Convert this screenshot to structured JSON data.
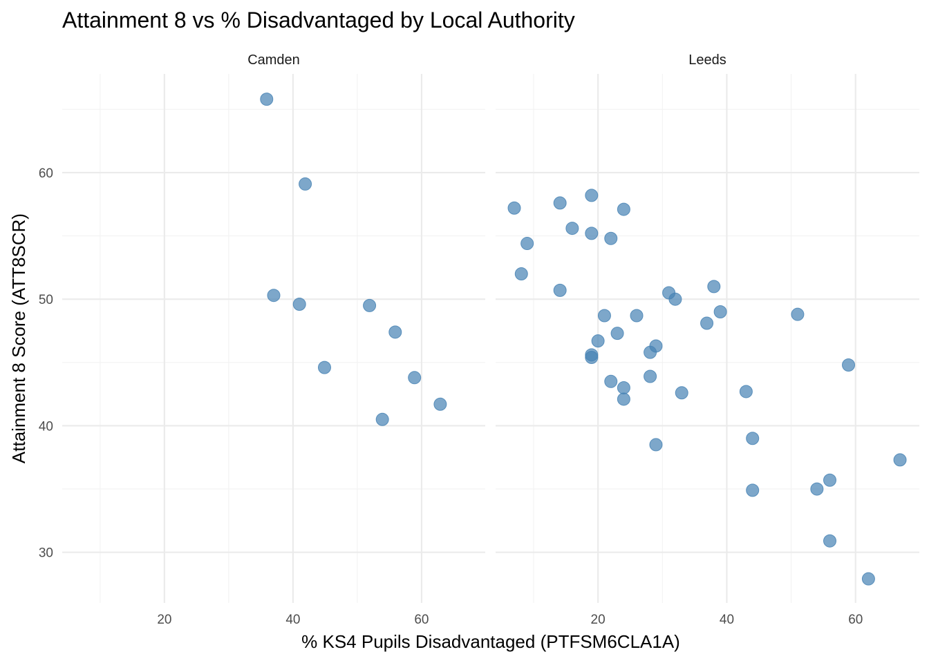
{
  "chart_data": {
    "type": "scatter",
    "title": "Attainment 8 vs % Disadvantaged by Local Authority",
    "xlabel": "% KS4 Pupils Disadvantaged (PTFSM6CLA1A)",
    "ylabel": "Attainment 8 Score (ATT8SCR)",
    "xlim": [
      4.1,
      69.9
    ],
    "ylim": [
      26.0,
      67.8
    ],
    "x_ticks": [
      20,
      40,
      60
    ],
    "y_ticks": [
      30,
      40,
      50,
      60
    ],
    "x_tick_labels": [
      "20",
      "40",
      "60"
    ],
    "y_tick_labels": [
      "30",
      "40",
      "50",
      "60"
    ],
    "grid": true,
    "legend": "none",
    "point_color": "#4682B4",
    "facets": [
      {
        "name": "Camden",
        "points": [
          {
            "x": 35.9,
            "y": 65.8
          },
          {
            "x": 41.9,
            "y": 59.1
          },
          {
            "x": 37.0,
            "y": 50.3
          },
          {
            "x": 41.0,
            "y": 49.6
          },
          {
            "x": 51.9,
            "y": 49.5
          },
          {
            "x": 55.9,
            "y": 47.4
          },
          {
            "x": 44.9,
            "y": 44.6
          },
          {
            "x": 58.9,
            "y": 43.8
          },
          {
            "x": 62.9,
            "y": 41.7
          },
          {
            "x": 53.9,
            "y": 40.5
          }
        ]
      },
      {
        "name": "Leeds",
        "points": [
          {
            "x": 7.0,
            "y": 57.2
          },
          {
            "x": 14.1,
            "y": 57.6
          },
          {
            "x": 19.0,
            "y": 58.2
          },
          {
            "x": 24.0,
            "y": 57.1
          },
          {
            "x": 16.0,
            "y": 55.6
          },
          {
            "x": 19.0,
            "y": 55.2
          },
          {
            "x": 22.0,
            "y": 54.8
          },
          {
            "x": 9.0,
            "y": 54.4
          },
          {
            "x": 8.1,
            "y": 52.0
          },
          {
            "x": 14.1,
            "y": 50.7
          },
          {
            "x": 31.0,
            "y": 50.5
          },
          {
            "x": 32.0,
            "y": 50.0
          },
          {
            "x": 38.0,
            "y": 51.0
          },
          {
            "x": 39.0,
            "y": 49.0
          },
          {
            "x": 36.9,
            "y": 48.1
          },
          {
            "x": 51.0,
            "y": 48.8
          },
          {
            "x": 21.0,
            "y": 48.7
          },
          {
            "x": 26.0,
            "y": 48.7
          },
          {
            "x": 23.0,
            "y": 47.3
          },
          {
            "x": 20.0,
            "y": 46.7
          },
          {
            "x": 29.0,
            "y": 46.3
          },
          {
            "x": 28.1,
            "y": 45.8
          },
          {
            "x": 19.0,
            "y": 45.6
          },
          {
            "x": 19.0,
            "y": 45.4
          },
          {
            "x": 58.9,
            "y": 44.8
          },
          {
            "x": 28.1,
            "y": 43.9
          },
          {
            "x": 22.0,
            "y": 43.5
          },
          {
            "x": 24.0,
            "y": 43.0
          },
          {
            "x": 24.0,
            "y": 42.1
          },
          {
            "x": 33.0,
            "y": 42.6
          },
          {
            "x": 43.0,
            "y": 42.7
          },
          {
            "x": 44.0,
            "y": 39.0
          },
          {
            "x": 29.0,
            "y": 38.5
          },
          {
            "x": 66.9,
            "y": 37.3
          },
          {
            "x": 56.0,
            "y": 35.7
          },
          {
            "x": 54.0,
            "y": 35.0
          },
          {
            "x": 44.0,
            "y": 34.9
          },
          {
            "x": 56.0,
            "y": 30.9
          },
          {
            "x": 62.0,
            "y": 27.9
          }
        ]
      }
    ]
  }
}
